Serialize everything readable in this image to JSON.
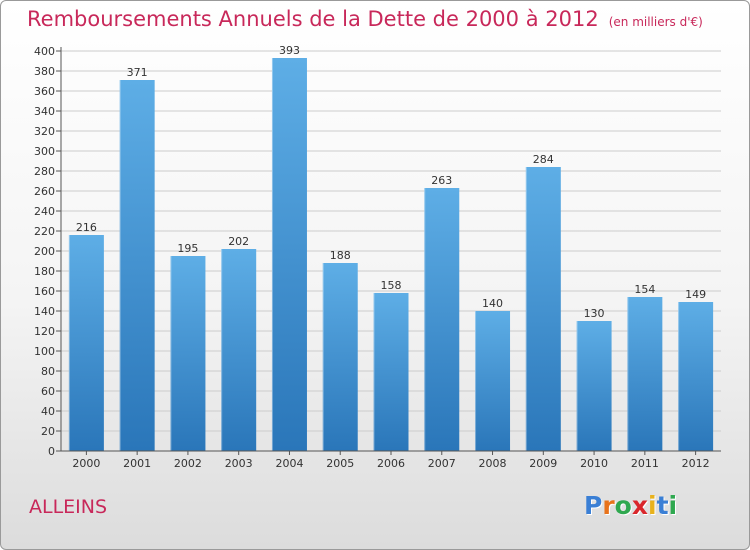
{
  "header": {
    "title": "Remboursements Annuels de la Dette de 2000 à 2012",
    "unit": "(en milliers d'€)"
  },
  "location": "ALLEINS",
  "logo": {
    "letters": [
      "P",
      "r",
      "o",
      "x",
      "i",
      "t",
      "i"
    ],
    "colors": [
      "#3a7fd5",
      "#e8731c",
      "#2fa84f",
      "#d9262b",
      "#e8b21c",
      "#3a7fd5",
      "#2fa84f"
    ]
  },
  "colors": {
    "bar_top": "#5eaee6",
    "bar_bottom": "#2a76b9",
    "title": "#c8285a",
    "grid": "#cccccc"
  },
  "chart_data": {
    "type": "bar",
    "categories": [
      "2000",
      "2001",
      "2002",
      "2003",
      "2004",
      "2005",
      "2006",
      "2007",
      "2008",
      "2009",
      "2010",
      "2011",
      "2012"
    ],
    "values": [
      216,
      371,
      195,
      202,
      393,
      188,
      158,
      263,
      140,
      284,
      130,
      154,
      149
    ],
    "ylim": [
      0,
      400
    ],
    "yticks": [
      0,
      20,
      40,
      60,
      80,
      100,
      120,
      140,
      160,
      180,
      200,
      220,
      240,
      260,
      280,
      300,
      320,
      340,
      360,
      380,
      400
    ],
    "grid": true,
    "title": "Remboursements Annuels de la Dette de 2000 à 2012",
    "xlabel": "",
    "ylabel": ""
  }
}
